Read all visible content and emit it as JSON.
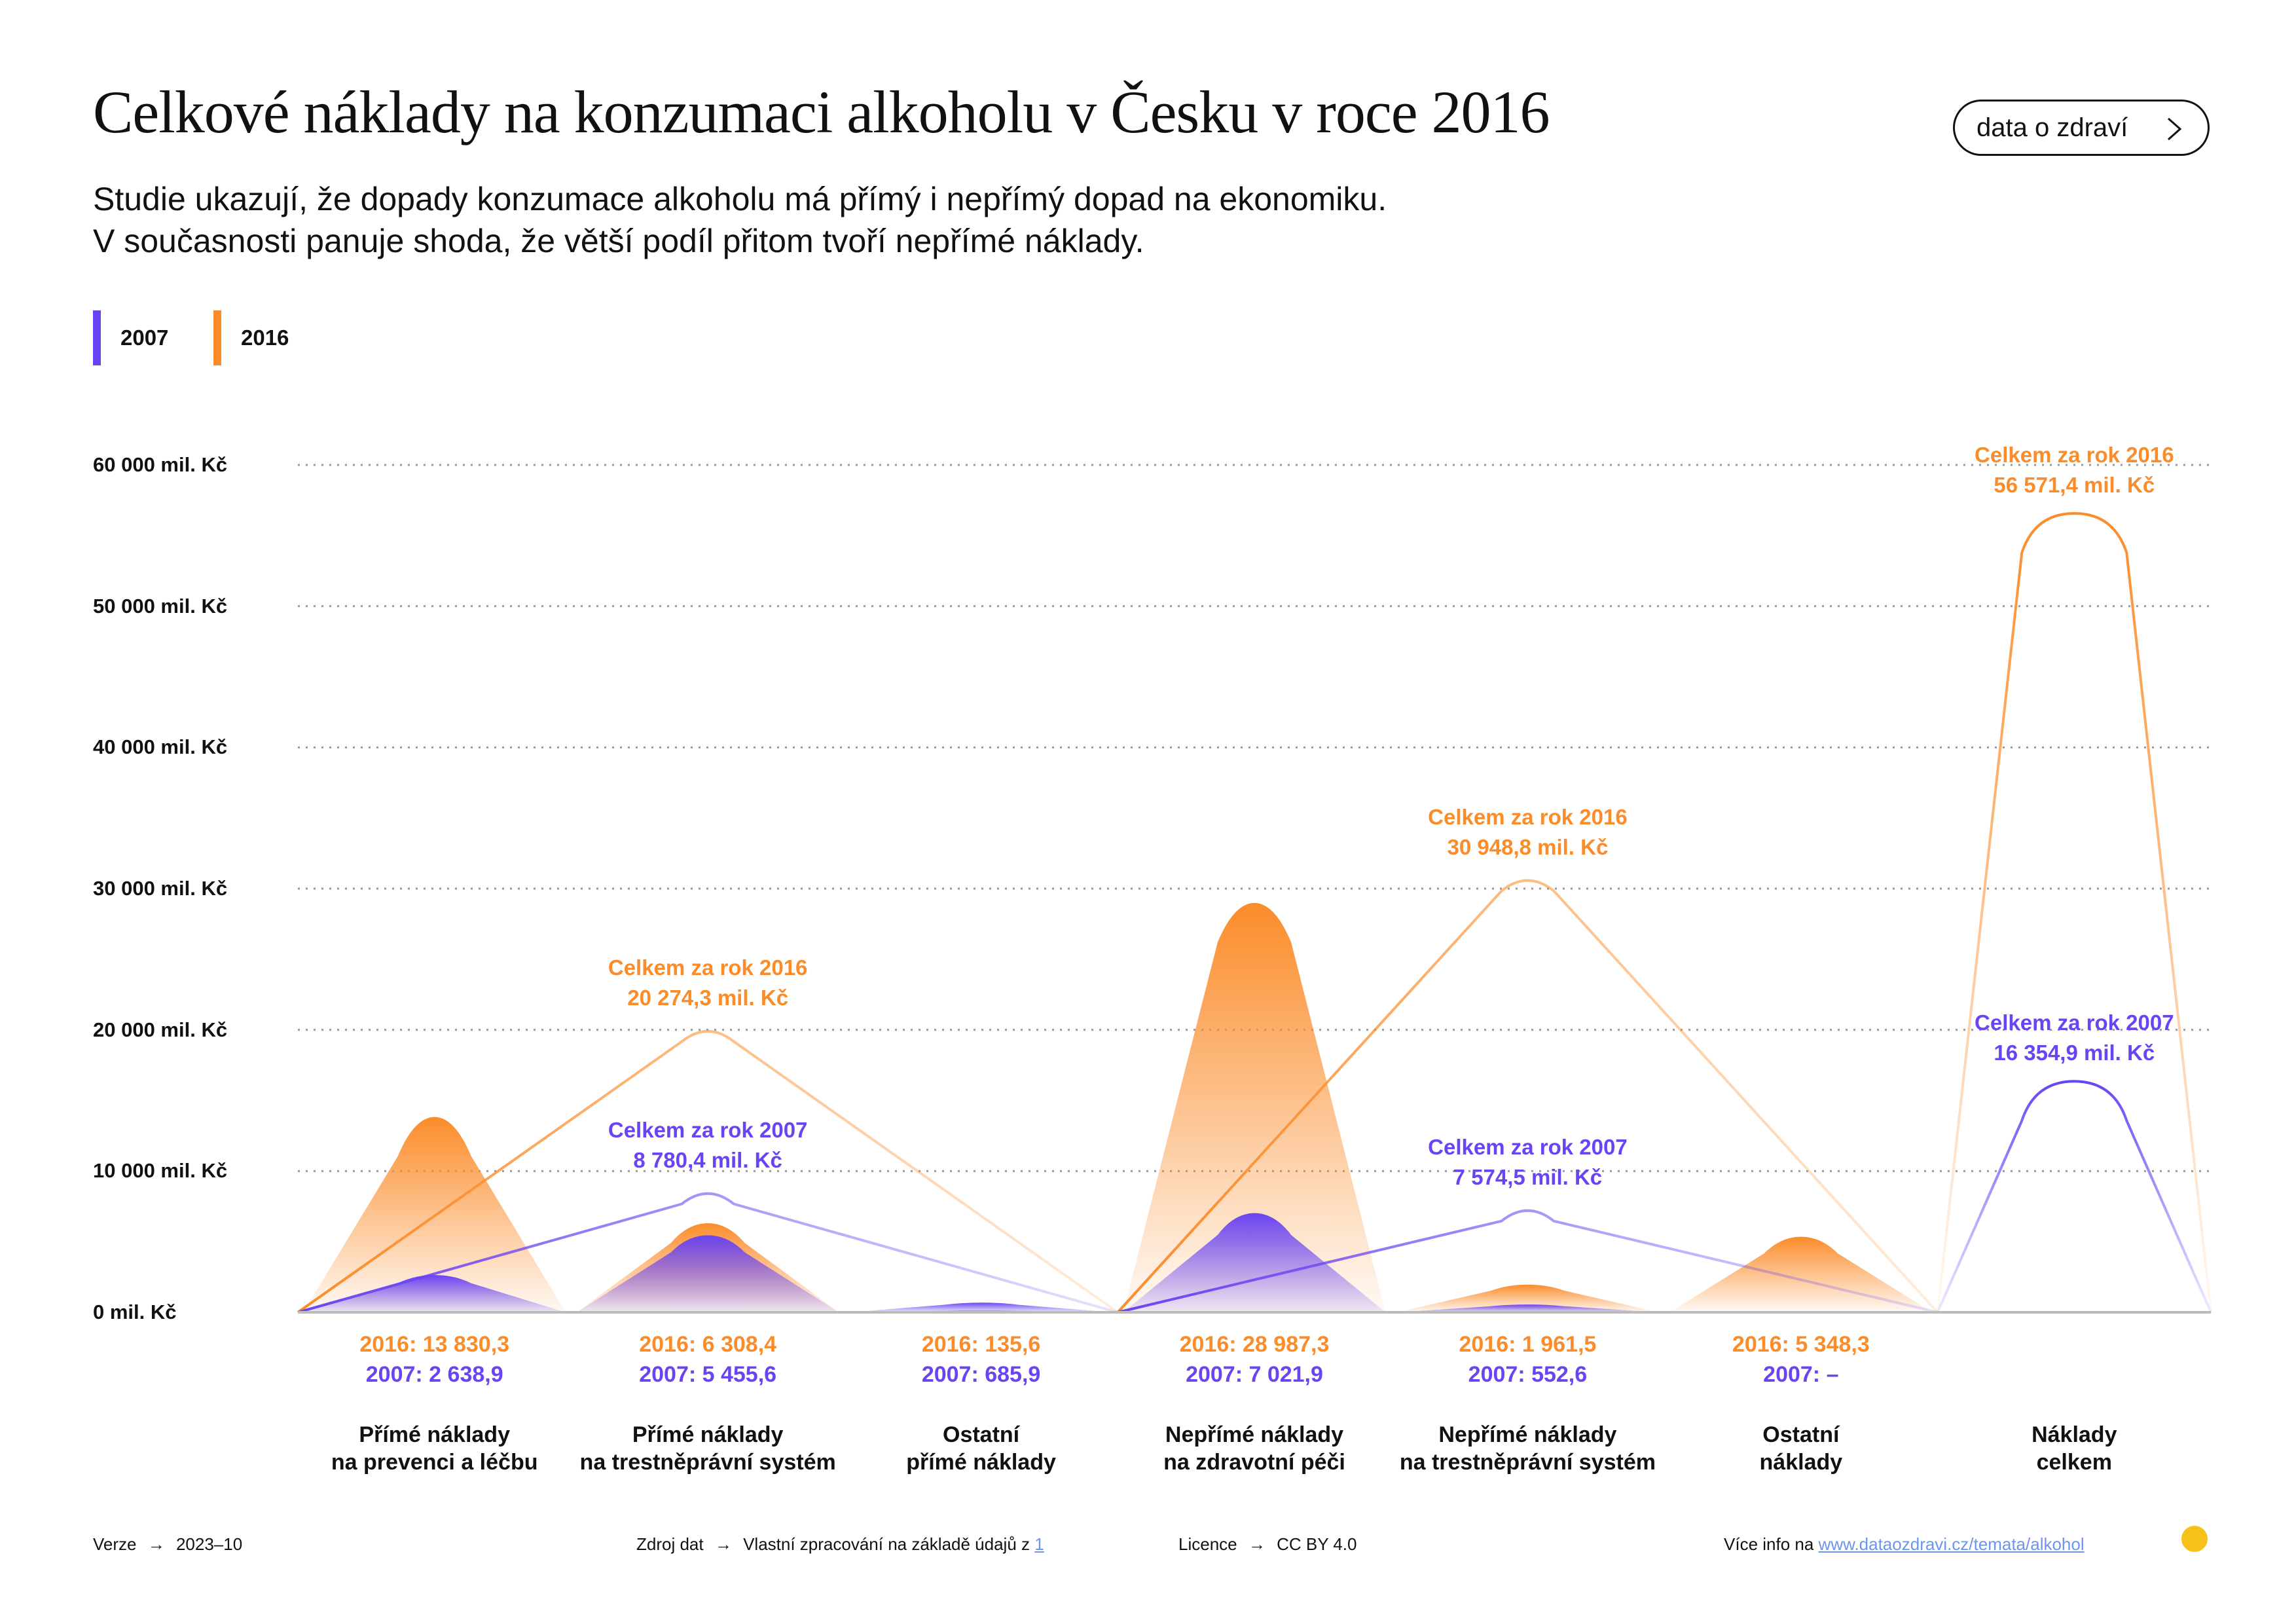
{
  "header": {
    "title": "Celkové náklady na konzumaci alkoholu v Česku v roce 2016",
    "subtitle_line1": "Studie ukazují, že dopady konzumace alkoholu má přímý i nepřímý dopad na ekonomiku.",
    "subtitle_line2": "V současnosti panuje shoda, že větší podíl přitom tvoří nepřímé náklady.",
    "nav_button": "data o zdraví"
  },
  "legend": [
    {
      "label": "2007",
      "color": "#6a44f2"
    },
    {
      "label": "2016",
      "color": "#fb8c2a"
    }
  ],
  "chart_data": {
    "type": "area",
    "ylim": [
      0,
      60000
    ],
    "yticks": [
      "60 000 mil. Kč",
      "50 000 mil. Kč",
      "40 000 mil. Kč",
      "30 000 mil. Kč",
      "20 000 mil. Kč",
      "10 000 mil. Kč",
      "0 mil. Kč"
    ],
    "ytick_values": [
      60000,
      50000,
      40000,
      30000,
      20000,
      10000,
      0
    ],
    "grid": true,
    "legend_position": "top-left",
    "colors": {
      "2007": "#6a44f2",
      "2016": "#fb8c2a"
    },
    "categories": [
      {
        "line1": "Přímé náklady",
        "line2": "na prevenci a léčbu",
        "v2016": 13830.3,
        "v2007": 2638.9,
        "label2016": "2016: 13 830,3",
        "label2007": "2007: 2 638,9"
      },
      {
        "line1": "Přímé náklady",
        "line2": "na trestněprávní systém",
        "v2016": 6308.4,
        "v2007": 5455.6,
        "label2016": "2016: 6 308,4",
        "label2007": "2007: 5 455,6"
      },
      {
        "line1": "Ostatní",
        "line2": "přímé náklady",
        "v2016": 135.6,
        "v2007": 685.9,
        "label2016": "2016: 135,6",
        "label2007": "2007: 685,9"
      },
      {
        "line1": "Nepřímé náklady",
        "line2": "na zdravotní péči",
        "v2016": 28987.3,
        "v2007": 7021.9,
        "label2016": "2016: 28 987,3",
        "label2007": "2007: 7 021,9"
      },
      {
        "line1": "Nepřímé náklady",
        "line2": "na trestněprávní systém",
        "v2016": 1961.5,
        "v2007": 552.6,
        "label2016": "2016: 1 961,5",
        "label2007": "2007: 552,6"
      },
      {
        "line1": "Ostatní",
        "line2": "náklady",
        "v2016": 5348.3,
        "v2007": null,
        "label2016": "2016: 5 348,3",
        "label2007": "2007: –"
      },
      {
        "line1": "Náklady",
        "line2": "celkem",
        "v2016": 56571.4,
        "v2007": 16354.9,
        "label2016": "",
        "label2007": ""
      }
    ],
    "group_totals": [
      {
        "group": "Přímé náklady",
        "total2016": 20274.3,
        "total2007": 8780.4,
        "ann2016_l1": "Celkem za rok 2016",
        "ann2016_l2": "20 274,3 mil. Kč",
        "ann2007_l1": "Celkem za rok 2007",
        "ann2007_l2": "8 780,4 mil. Kč"
      },
      {
        "group": "Nepřímé náklady",
        "total2016": 30948.8,
        "total2007": 7574.5,
        "ann2016_l1": "Celkem za rok 2016",
        "ann2016_l2": "30 948,8 mil. Kč",
        "ann2007_l1": "Celkem za rok 2007",
        "ann2007_l2": "7 574,5 mil. Kč"
      },
      {
        "group": "Náklady celkem",
        "total2016": 56571.4,
        "total2007": 16354.9,
        "ann2016_l1": "Celkem za rok 2016",
        "ann2016_l2": "56 571,4 mil. Kč",
        "ann2007_l1": "Celkem za rok 2007",
        "ann2007_l2": "16 354,9 mil. Kč"
      }
    ]
  },
  "footer": {
    "version_label": "Verze",
    "version_value": "2023–10",
    "source_label": "Zdroj dat",
    "source_value": "Vlastní zpracování na základě údajů z",
    "source_link": "1",
    "licence_label": "Licence",
    "licence_value": "CC BY 4.0",
    "more_label": "Více info na",
    "more_link": "www.dataozdravi.cz/temata/alkohol",
    "arrow": "→"
  }
}
